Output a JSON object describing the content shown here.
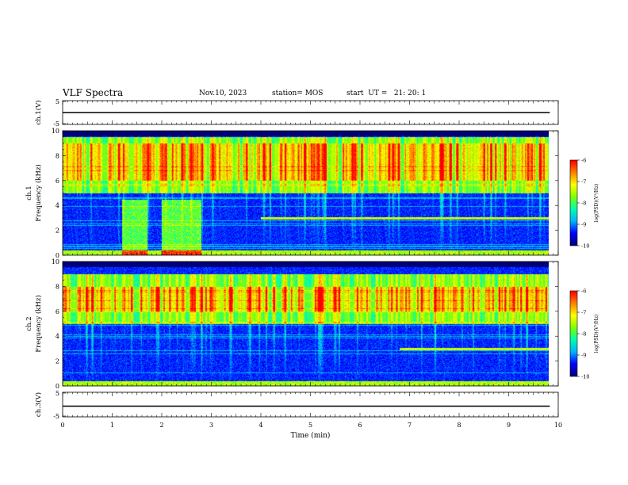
{
  "header": {
    "title": "VLF Spectra",
    "date": "Nov.10, 2023",
    "station": "station= MOS",
    "start_time": "start  UT =   21: 20: 1"
  },
  "chart_data": [
    {
      "type": "line",
      "panel": "ch1-waveform",
      "ylabel": "ch.1(V)",
      "ylim": [
        -5,
        5
      ],
      "yticks": [
        "5",
        "-5"
      ],
      "series": [
        {
          "values": [
            0,
            0,
            0,
            0,
            0,
            0,
            0,
            0,
            0,
            0,
            0,
            0,
            0,
            0,
            0,
            0,
            0,
            0,
            0,
            0,
            0,
            0,
            0,
            0,
            0,
            0,
            0,
            0,
            0,
            0,
            0,
            0,
            0,
            0,
            0,
            0,
            0,
            0,
            0,
            0,
            0,
            0,
            0,
            0,
            0,
            0,
            0,
            0,
            0,
            0,
            0,
            0,
            0,
            0,
            0,
            0,
            0,
            0,
            0,
            0,
            0,
            0,
            0,
            0,
            0,
            0,
            0,
            0,
            0,
            0,
            0,
            0,
            0,
            0,
            0,
            0,
            0,
            0,
            0,
            0,
            0,
            0,
            0,
            0,
            0,
            0,
            0,
            0,
            0,
            0,
            0,
            0,
            0,
            0,
            0,
            0,
            0,
            0,
            0,
            0
          ]
        }
      ],
      "xlim": [
        0,
        9.83
      ]
    },
    {
      "type": "heatmap",
      "panel": "ch1-spectrogram",
      "ylabel": "Frequency (kHz)",
      "channel_label": "ch.1",
      "ylim": [
        0,
        10
      ],
      "yticks": [
        "0",
        "2",
        "4",
        "6",
        "8",
        "10"
      ],
      "xlim": [
        0,
        9.83
      ],
      "colorbar": {
        "label": "log(PSD)(V²/Hz)",
        "range": [
          -10,
          -6
        ],
        "ticks": [
          "-6",
          "-7",
          "-8",
          "-9",
          "-10"
        ]
      },
      "features": {
        "emission_band_kHz": [
          5,
          9.5
        ],
        "intense_band_kHz": [
          6,
          9
        ],
        "line_emission_start_min": 4.0,
        "line_emission_freq_kHz": 3.0
      }
    },
    {
      "type": "heatmap",
      "panel": "ch2-spectrogram",
      "ylabel": "Frequency (kHz)",
      "channel_label": "ch.2",
      "ylim": [
        0,
        10
      ],
      "yticks": [
        "0",
        "2",
        "4",
        "6",
        "8",
        "10"
      ],
      "xlim": [
        0,
        9.83
      ],
      "colorbar": {
        "label": "log(PSD)(V²/Hz)",
        "range": [
          -10,
          -6
        ],
        "ticks": [
          "-6",
          "-7",
          "-8",
          "-9",
          "-10"
        ]
      },
      "features": {
        "emission_band_kHz": [
          5,
          9
        ],
        "intense_band_kHz": [
          6,
          8
        ],
        "line_emission_start_min": 6.8,
        "line_emission_freq_kHz": 3.0
      }
    },
    {
      "type": "line",
      "panel": "ch3-waveform",
      "ylabel": "ch.3(V)",
      "ylim": [
        -5,
        5
      ],
      "yticks": [
        "5",
        "-5"
      ],
      "series": [
        {
          "values": [
            0,
            0,
            0,
            0,
            0,
            0,
            0,
            0,
            0,
            0,
            0,
            0,
            0,
            0,
            0,
            0,
            0,
            0,
            0,
            0,
            0,
            0,
            0,
            0,
            0,
            0,
            0,
            0,
            0,
            0,
            0,
            0,
            0,
            0,
            0,
            0,
            0,
            0,
            0,
            0,
            0,
            0,
            0,
            0,
            0,
            0,
            0,
            0,
            0,
            0,
            0,
            0,
            0,
            0,
            0,
            0,
            0,
            0,
            0,
            0,
            0,
            0,
            0,
            0,
            0,
            0,
            0,
            0,
            0,
            0,
            0,
            0,
            0,
            0,
            0,
            0,
            0,
            0,
            0,
            0,
            0,
            0,
            0,
            0,
            0,
            0,
            0,
            0,
            0,
            0,
            0,
            0,
            0,
            0,
            0,
            0,
            0,
            0,
            0,
            0
          ]
        }
      ],
      "xlim": [
        0,
        9.83
      ]
    }
  ],
  "x_axis": {
    "label": "Time (min)",
    "range": [
      0,
      10
    ],
    "ticks": [
      "0",
      "1",
      "2",
      "3",
      "4",
      "5",
      "6",
      "7",
      "8",
      "9",
      "10"
    ]
  },
  "colors": {
    "colormap": [
      "#00007a",
      "#0000ff",
      "#00b4ff",
      "#00ffb0",
      "#80ff00",
      "#ffff00",
      "#ff8000",
      "#ff0000",
      "#ffffff"
    ],
    "background": "#ffffff",
    "axes": "#000000"
  }
}
